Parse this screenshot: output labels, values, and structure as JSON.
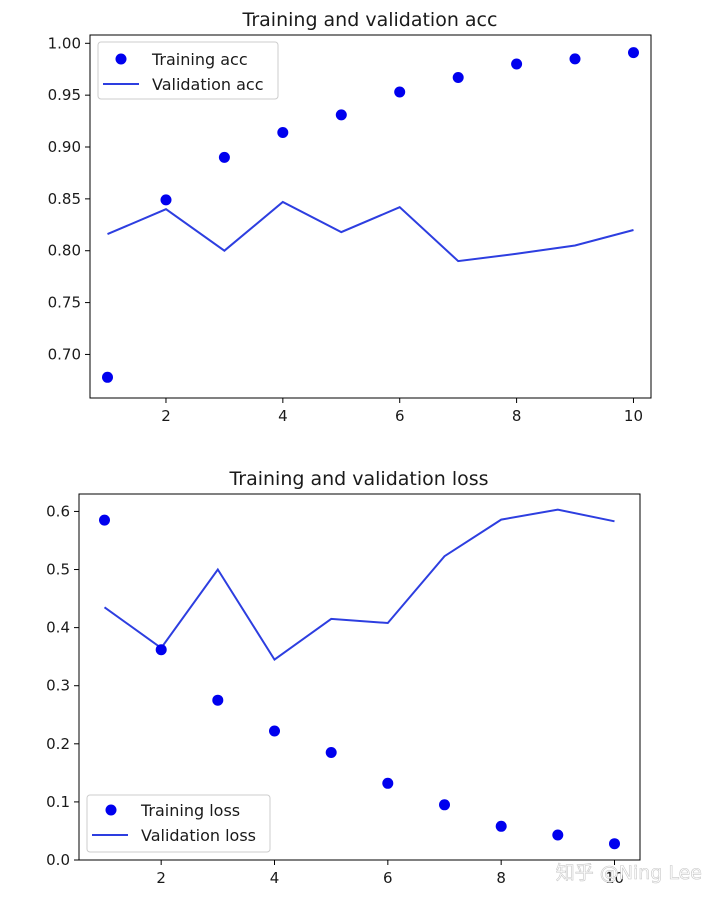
{
  "chart_data": [
    {
      "type": "scatter+line",
      "title": "Training and validation acc",
      "xlabel": "",
      "ylabel": "",
      "x": [
        1,
        2,
        3,
        4,
        5,
        6,
        7,
        8,
        9,
        10
      ],
      "xlim": [
        0.7,
        10.3
      ],
      "ylim": [
        0.658,
        1.008
      ],
      "xticks": [
        2,
        4,
        6,
        8,
        10
      ],
      "yticks": [
        0.7,
        0.75,
        0.8,
        0.85,
        0.9,
        0.95,
        1.0
      ],
      "ytick_labels": [
        "0.70",
        "0.75",
        "0.80",
        "0.85",
        "0.90",
        "0.95",
        "1.00"
      ],
      "grid": false,
      "legend_position": "upper-left",
      "series": [
        {
          "name": "Training acc",
          "style": "dots",
          "color": "#0000ee",
          "values": [
            0.678,
            0.849,
            0.89,
            0.914,
            0.931,
            0.953,
            0.967,
            0.98,
            0.985,
            0.991
          ]
        },
        {
          "name": "Validation acc",
          "style": "line",
          "color": "#2d3ee0",
          "values": [
            0.816,
            0.84,
            0.8,
            0.847,
            0.818,
            0.842,
            0.79,
            0.797,
            0.805,
            0.82
          ]
        }
      ]
    },
    {
      "type": "scatter+line",
      "title": "Training and validation loss",
      "xlabel": "",
      "ylabel": "",
      "x": [
        1,
        2,
        3,
        4,
        5,
        6,
        7,
        8,
        9,
        10
      ],
      "xlim": [
        0.55,
        10.45
      ],
      "ylim": [
        0.0,
        0.63
      ],
      "xticks": [
        2,
        4,
        6,
        8,
        10
      ],
      "yticks": [
        0.0,
        0.1,
        0.2,
        0.3,
        0.4,
        0.5,
        0.6
      ],
      "ytick_labels": [
        "0.0",
        "0.1",
        "0.2",
        "0.3",
        "0.4",
        "0.5",
        "0.6"
      ],
      "grid": false,
      "legend_position": "lower-left",
      "series": [
        {
          "name": "Training loss",
          "style": "dots",
          "color": "#0000ee",
          "values": [
            0.585,
            0.362,
            0.275,
            0.222,
            0.185,
            0.132,
            0.095,
            0.058,
            0.043,
            0.028
          ]
        },
        {
          "name": "Validation loss",
          "style": "line",
          "color": "#2d3ee0",
          "values": [
            0.435,
            0.365,
            0.5,
            0.345,
            0.415,
            0.408,
            0.523,
            0.586,
            0.603,
            0.583
          ]
        }
      ]
    }
  ],
  "watermark": "知乎 @Ning Lee"
}
